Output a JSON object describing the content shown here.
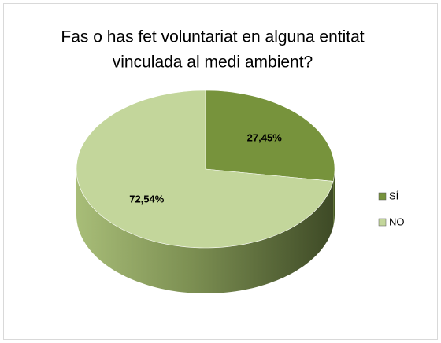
{
  "chart_data": {
    "type": "pie",
    "title": [
      "Fas o has fet voluntariat en alguna entitat",
      "vinculada al medi ambient?"
    ],
    "categories": [
      "SÍ",
      "NO"
    ],
    "values": [
      27.45,
      72.54
    ],
    "value_labels": [
      "27,45%",
      "72,54%"
    ],
    "colors": [
      "#77933c",
      "#c3d69b"
    ],
    "legend": "right"
  }
}
